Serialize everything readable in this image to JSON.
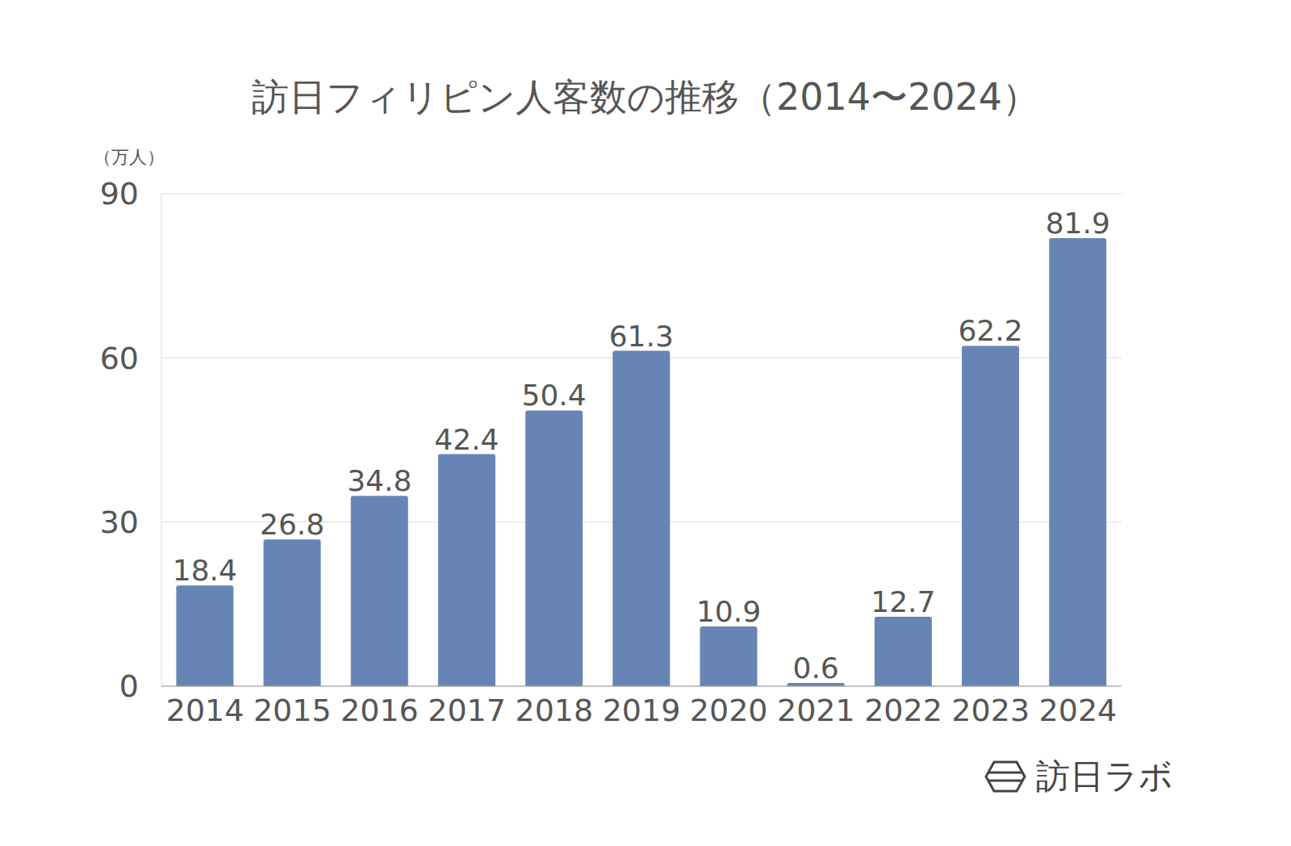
{
  "chart_data": {
    "type": "bar",
    "title": "訪日フィリピン人客数の推移（2014〜2024）",
    "y_label": "（万人）",
    "annotations": [
      "訪日ラボ"
    ],
    "categories": [
      "2014",
      "2015",
      "2016",
      "2017",
      "2018",
      "2019",
      "2020",
      "2021",
      "2022",
      "2023",
      "2024"
    ],
    "values": [
      18.4,
      26.8,
      34.8,
      42.4,
      50.4,
      61.3,
      10.9,
      0.6,
      12.7,
      62.2,
      81.9
    ],
    "color": "#6785b4",
    "ylim": [
      0,
      90
    ],
    "yticks": [
      0,
      30,
      60,
      90
    ],
    "grid": true,
    "data_labels": true
  }
}
